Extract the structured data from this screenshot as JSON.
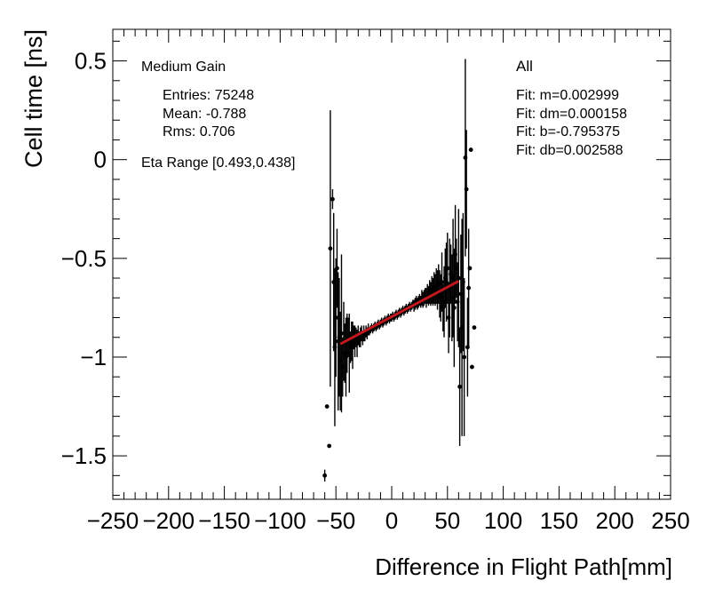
{
  "chart_data": {
    "type": "scatter",
    "xlabel": "Difference in Flight Path[mm]",
    "ylabel": "Cell time [ns]",
    "xlim": [
      -250,
      250
    ],
    "ylim": [
      -1.72,
      0.66
    ],
    "x_ticks": [
      -250,
      -200,
      -150,
      -100,
      -50,
      0,
      50,
      100,
      150,
      200,
      250
    ],
    "x_tick_labels": [
      "−250",
      "−200",
      "−150",
      "−100",
      "−50",
      "0",
      "50",
      "100",
      "150",
      "200",
      "250"
    ],
    "y_ticks": [
      0.5,
      0,
      -0.5,
      -1,
      -1.5
    ],
    "y_tick_labels": [
      "0.5",
      "0",
      "−0.5",
      "−1",
      "−1.5"
    ],
    "stats": {
      "title": "Medium Gain",
      "entries": "Entries: 75248",
      "mean": "Mean: -0.788",
      "rms": "Rms: 0.706",
      "eta": "Eta Range [0.493,0.438]"
    },
    "fit": {
      "label": "All",
      "m": "Fit: m=0.002999",
      "dm": "Fit: dm=0.000158",
      "b": "Fit: b=-0.795375",
      "db": "Fit: db=0.002588",
      "slope": 0.002999,
      "intercept": -0.795375,
      "x_range": [
        -46,
        60
      ],
      "color": "#c0181e"
    },
    "points": [
      [
        -60,
        -1.6,
        0.03
      ],
      [
        -58,
        -1.25,
        0
      ],
      [
        -56,
        -1.45,
        0
      ],
      [
        -55,
        -0.45,
        0.7
      ],
      [
        -53,
        -0.2,
        0.05
      ],
      [
        -52,
        -0.62,
        0.35
      ],
      [
        -51,
        -0.95,
        0.4
      ],
      [
        -50,
        -0.8,
        0.3
      ],
      [
        -49,
        -0.55,
        0.2
      ],
      [
        -48,
        -0.92,
        0.35
      ],
      [
        -47,
        -0.9,
        0.3
      ],
      [
        -46,
        -1.02,
        0.25
      ],
      [
        -45,
        -0.88,
        0.4
      ],
      [
        -44,
        -1.05,
        0.15
      ],
      [
        -43,
        -0.92,
        0.2
      ],
      [
        -42,
        -0.98,
        0.15
      ],
      [
        -41,
        -1.0,
        0.2
      ],
      [
        -40,
        -0.93,
        0.15
      ],
      [
        -39,
        -0.9,
        0.1
      ],
      [
        -38,
        -0.98,
        0.2
      ],
      [
        -37,
        -0.95,
        0.08
      ],
      [
        -36,
        -0.92,
        0.1
      ],
      [
        -35,
        -0.94,
        0.12
      ],
      [
        -34,
        -0.9,
        0.06
      ],
      [
        -33,
        -0.92,
        0.08
      ],
      [
        -32,
        -0.9,
        0.05
      ],
      [
        -31,
        -0.93,
        0.07
      ],
      [
        -30,
        -0.89,
        0.05
      ],
      [
        -29,
        -0.91,
        0.04
      ],
      [
        -28,
        -0.9,
        0.05
      ],
      [
        -27,
        -0.88,
        0.04
      ],
      [
        -26,
        -0.91,
        0.03
      ],
      [
        -25,
        -0.88,
        0.04
      ],
      [
        -24,
        -0.89,
        0.03
      ],
      [
        -23,
        -0.87,
        0.03
      ],
      [
        -22,
        -0.88,
        0.03
      ],
      [
        -21,
        -0.86,
        0.03
      ],
      [
        -20,
        -0.87,
        0.02
      ],
      [
        -19,
        -0.86,
        0.02
      ],
      [
        -18,
        -0.85,
        0.02
      ],
      [
        -17,
        -0.86,
        0.02
      ],
      [
        -16,
        -0.85,
        0.02
      ],
      [
        -15,
        -0.84,
        0.02
      ],
      [
        -14,
        -0.85,
        0.02
      ],
      [
        -13,
        -0.84,
        0.02
      ],
      [
        -12,
        -0.83,
        0.02
      ],
      [
        -11,
        -0.84,
        0.02
      ],
      [
        -10,
        -0.83,
        0.02
      ],
      [
        -9,
        -0.82,
        0.02
      ],
      [
        -8,
        -0.83,
        0.02
      ],
      [
        -7,
        -0.82,
        0.02
      ],
      [
        -6,
        -0.81,
        0.02
      ],
      [
        -5,
        -0.82,
        0.02
      ],
      [
        -4,
        -0.81,
        0.02
      ],
      [
        -3,
        -0.8,
        0.02
      ],
      [
        -2,
        -0.81,
        0.02
      ],
      [
        -1,
        -0.8,
        0.02
      ],
      [
        0,
        -0.8,
        0.02
      ],
      [
        1,
        -0.79,
        0.02
      ],
      [
        2,
        -0.8,
        0.02
      ],
      [
        3,
        -0.79,
        0.02
      ],
      [
        4,
        -0.78,
        0.02
      ],
      [
        5,
        -0.79,
        0.02
      ],
      [
        6,
        -0.78,
        0.02
      ],
      [
        7,
        -0.77,
        0.02
      ],
      [
        8,
        -0.78,
        0.02
      ],
      [
        9,
        -0.77,
        0.02
      ],
      [
        10,
        -0.76,
        0.02
      ],
      [
        11,
        -0.77,
        0.02
      ],
      [
        12,
        -0.76,
        0.02
      ],
      [
        13,
        -0.75,
        0.02
      ],
      [
        14,
        -0.76,
        0.02
      ],
      [
        15,
        -0.75,
        0.02
      ],
      [
        16,
        -0.74,
        0.02
      ],
      [
        17,
        -0.75,
        0.02
      ],
      [
        18,
        -0.74,
        0.02
      ],
      [
        19,
        -0.73,
        0.02
      ],
      [
        20,
        -0.74,
        0.03
      ],
      [
        21,
        -0.73,
        0.03
      ],
      [
        22,
        -0.72,
        0.03
      ],
      [
        23,
        -0.73,
        0.03
      ],
      [
        24,
        -0.72,
        0.03
      ],
      [
        25,
        -0.71,
        0.03
      ],
      [
        26,
        -0.72,
        0.03
      ],
      [
        27,
        -0.7,
        0.04
      ],
      [
        28,
        -0.71,
        0.04
      ],
      [
        29,
        -0.7,
        0.04
      ],
      [
        30,
        -0.69,
        0.04
      ],
      [
        31,
        -0.7,
        0.05
      ],
      [
        32,
        -0.68,
        0.05
      ],
      [
        33,
        -0.69,
        0.05
      ],
      [
        34,
        -0.67,
        0.06
      ],
      [
        35,
        -0.68,
        0.06
      ],
      [
        36,
        -0.66,
        0.07
      ],
      [
        37,
        -0.67,
        0.07
      ],
      [
        38,
        -0.65,
        0.08
      ],
      [
        39,
        -0.66,
        0.08
      ],
      [
        40,
        -0.64,
        0.09
      ],
      [
        41,
        -0.66,
        0.1
      ],
      [
        42,
        -0.63,
        0.1
      ],
      [
        43,
        -0.68,
        0.12
      ],
      [
        44,
        -0.7,
        0.12
      ],
      [
        45,
        -0.62,
        0.15
      ],
      [
        46,
        -0.75,
        0.12
      ],
      [
        47,
        -0.72,
        0.18
      ],
      [
        48,
        -0.6,
        0.15
      ],
      [
        49,
        -0.62,
        0.2
      ],
      [
        50,
        -0.55,
        0.18
      ],
      [
        51,
        -0.8,
        0.18
      ],
      [
        52,
        -0.65,
        0.25
      ],
      [
        53,
        -0.58,
        0.15
      ],
      [
        54,
        -0.7,
        0.22
      ],
      [
        55,
        -0.6,
        0.3
      ],
      [
        56,
        -0.75,
        0.3
      ],
      [
        57,
        -0.48,
        0.25
      ],
      [
        58,
        -0.55,
        0.15
      ],
      [
        59,
        -0.72,
        0.2
      ],
      [
        60,
        -0.6,
        0.35
      ],
      [
        61,
        -1.15,
        0.3
      ],
      [
        62,
        -0.68,
        0.3
      ],
      [
        63,
        -0.85,
        0.55
      ],
      [
        64,
        -0.62,
        0.35
      ],
      [
        65,
        -1.0,
        0.4
      ],
      [
        66,
        0.01,
        0.5
      ],
      [
        67,
        -0.15,
        0.3
      ],
      [
        68,
        -0.95,
        0.25
      ],
      [
        69,
        -0.65,
        0.3
      ],
      [
        70,
        -0.55,
        0
      ],
      [
        71,
        0.05,
        0
      ],
      [
        72,
        -1.05,
        0
      ],
      [
        74,
        -0.85,
        0
      ]
    ]
  }
}
